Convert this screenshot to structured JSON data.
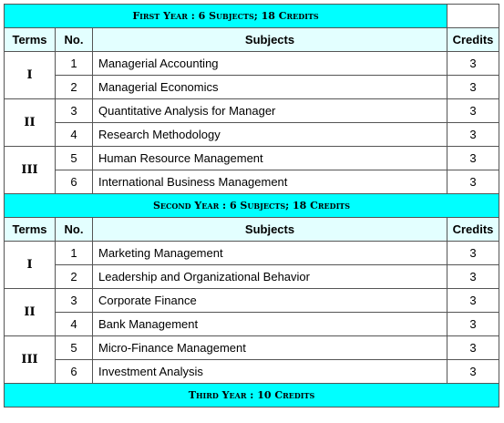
{
  "headers": {
    "terms": "Terms",
    "no": "No.",
    "subjects": "Subjects",
    "credits": "Credits"
  },
  "colors": {
    "band": "#00ffff",
    "header": "#e3ffff",
    "border": "#555555"
  },
  "years": [
    {
      "title": "First Year : 6 Subjects; 18 Credits",
      "terms": [
        {
          "term": "I",
          "courses": [
            {
              "no": "1",
              "subject": "Managerial Accounting",
              "credits": "3"
            },
            {
              "no": "2",
              "subject": "Managerial Economics",
              "credits": "3"
            }
          ]
        },
        {
          "term": "II",
          "courses": [
            {
              "no": "3",
              "subject": "Quantitative Analysis for Manager",
              "credits": "3"
            },
            {
              "no": "4",
              "subject": "Research Methodology",
              "credits": "3"
            }
          ]
        },
        {
          "term": "III",
          "courses": [
            {
              "no": "5",
              "subject": "Human Resource Management",
              "credits": "3"
            },
            {
              "no": "6",
              "subject": "International Business Management",
              "credits": "3"
            }
          ]
        }
      ]
    },
    {
      "title": "Second Year : 6 Subjects; 18 Credits",
      "terms": [
        {
          "term": "I",
          "courses": [
            {
              "no": "1",
              "subject": "Marketing Management",
              "credits": "3"
            },
            {
              "no": "2",
              "subject": "Leadership and Organizational Behavior",
              "credits": "3"
            }
          ]
        },
        {
          "term": "II",
          "courses": [
            {
              "no": "3",
              "subject": "Corporate Finance",
              "credits": "3"
            },
            {
              "no": "4",
              "subject": "Bank Management",
              "credits": "3"
            }
          ]
        },
        {
          "term": "III",
          "courses": [
            {
              "no": "5",
              "subject": "Micro-Finance Management",
              "credits": "3"
            },
            {
              "no": "6",
              "subject": "Investment Analysis",
              "credits": "3"
            }
          ]
        }
      ]
    },
    {
      "title": "Third Year : 10 Credits",
      "terms": []
    }
  ]
}
